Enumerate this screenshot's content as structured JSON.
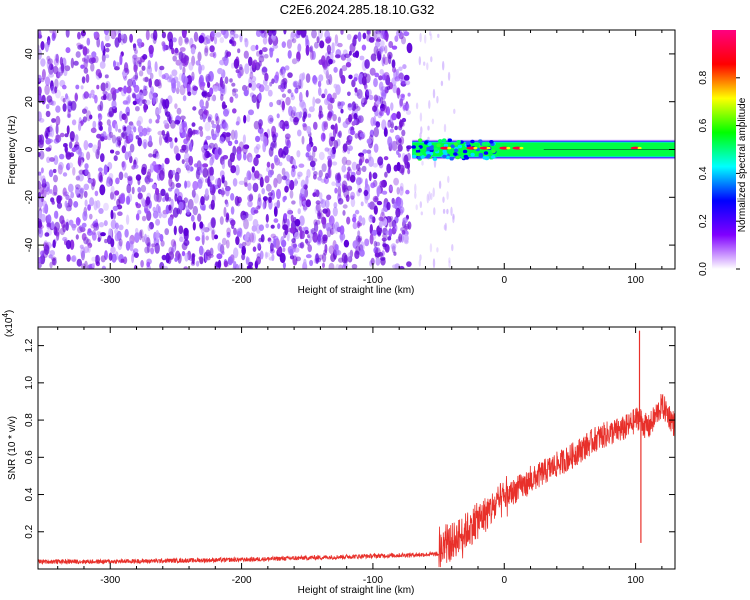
{
  "title": "C2E6.2024.285.18.10.G32",
  "chart_data": [
    {
      "type": "heatmap",
      "xlabel": "Height of straight line (km)",
      "ylabel": "Frequency (Hz)",
      "xlim": [
        -355,
        130
      ],
      "ylim": [
        -50,
        50
      ],
      "x_ticks": [
        -300,
        -200,
        -100,
        0,
        100
      ],
      "x_tick_labels": [
        "-300",
        "-200",
        "-100",
        "0",
        "100"
      ],
      "y_ticks": [
        -40,
        -20,
        0,
        20,
        40
      ],
      "y_tick_labels": [
        "-40",
        "-20",
        "0",
        "20",
        "40"
      ],
      "noise_region_x": [
        -355,
        -72
      ],
      "signal_band_x": [
        -72,
        130
      ],
      "signal_band_freq_hz": [
        -3,
        3
      ],
      "signal_peaks_x": [
        -45,
        -25,
        -15,
        0,
        10,
        100
      ],
      "colorbar": {
        "label": "Normalized spectral amplitude",
        "range": [
          0,
          1
        ],
        "ticks": [
          0.0,
          0.2,
          0.4,
          0.6,
          0.8
        ],
        "tick_labels": [
          "0.0",
          "0.2",
          "0.4",
          "0.6",
          "0.8"
        ],
        "colors": [
          "#ffffff",
          "#8000ff",
          "#0000ff",
          "#00ffff",
          "#00ff00",
          "#ffff00",
          "#ff0000",
          "#ff0080"
        ]
      },
      "grid": false
    },
    {
      "type": "line",
      "xlabel": "Height of straight line (km)",
      "ylabel": "SNR (10 * v/v)",
      "scale_label": "(x10",
      "scale_exponent": "4",
      "scale_suffix": ")",
      "xlim": [
        -355,
        130
      ],
      "ylim": [
        0,
        1.3
      ],
      "x_ticks": [
        -300,
        -200,
        -100,
        0,
        100
      ],
      "x_tick_labels": [
        "-300",
        "-200",
        "-100",
        "0",
        "100"
      ],
      "y_ticks": [
        0.2,
        0.4,
        0.6,
        0.8,
        1.0,
        1.2
      ],
      "y_tick_labels": [
        "0.2",
        "0.4",
        "0.6",
        "0.8",
        "1.0",
        "1.2"
      ],
      "series_color": "#e8302a",
      "trend": {
        "x": [
          -355,
          -300,
          -200,
          -100,
          -50,
          -45,
          -30,
          -20,
          -10,
          0,
          10,
          20,
          30,
          40,
          50,
          60,
          70,
          80,
          90,
          95,
          100,
          103,
          105,
          110,
          115,
          120,
          125,
          130
        ],
        "y": [
          0.04,
          0.04,
          0.05,
          0.07,
          0.08,
          0.12,
          0.2,
          0.26,
          0.32,
          0.38,
          0.43,
          0.47,
          0.52,
          0.56,
          0.6,
          0.65,
          0.7,
          0.73,
          0.75,
          0.77,
          0.8,
          0.82,
          0.78,
          0.76,
          0.82,
          0.88,
          0.83,
          0.77
        ]
      },
      "spikes": [
        {
          "x": 103,
          "y": 1.28
        },
        {
          "x": 104,
          "y": 0.14
        }
      ],
      "grid": false
    }
  ]
}
